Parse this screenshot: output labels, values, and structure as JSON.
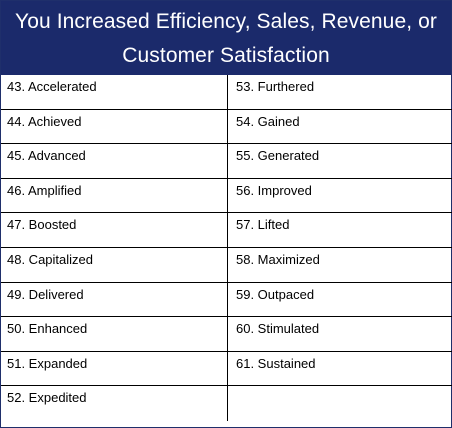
{
  "header": {
    "title_line1": "You Increased Efficiency, Sales, Revenue, or",
    "title_line2": "Customer Satisfaction"
  },
  "left_column": [
    "43. Accelerated",
    "44. Achieved",
    "45. Advanced",
    "46. Amplified",
    "47. Boosted",
    "48. Capitalized",
    "49. Delivered",
    "50. Enhanced",
    "51. Expanded",
    "52. Expedited"
  ],
  "right_column": [
    "53. Furthered",
    "54. Gained",
    "55. Generated",
    "56. Improved",
    "57. Lifted",
    "58. Maximized",
    "59. Outpaced",
    "60. Stimulated",
    "61. Sustained",
    ""
  ],
  "colors": {
    "header_bg": "#1b2a6b",
    "header_text": "#ffffff",
    "border": "#000000"
  }
}
